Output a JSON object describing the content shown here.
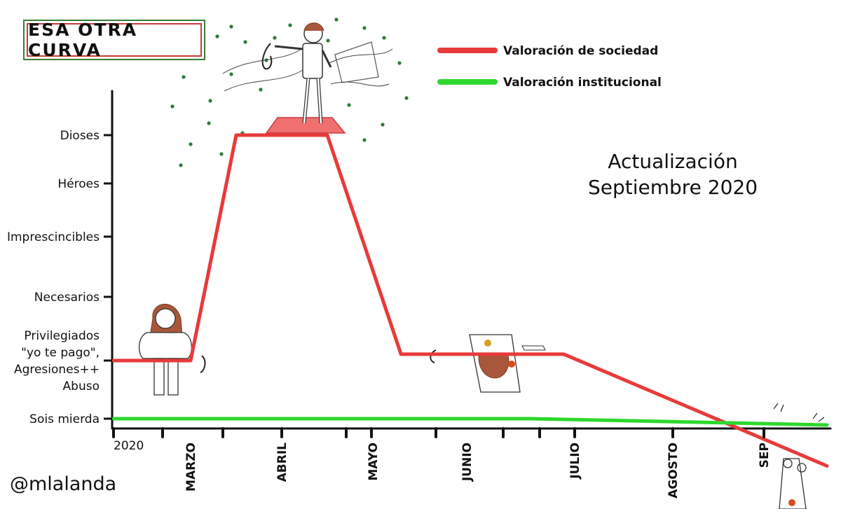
{
  "title": "ESA OTRA CURVA",
  "annotation": {
    "line1": "Actualización",
    "line2": "Septiembre 2020"
  },
  "signature": "@mlalanda",
  "colors": {
    "society": "#e83a3a",
    "institutional": "#2ed82e",
    "axis": "#111111",
    "frame_green": "#3a7a3a",
    "frame_red": "#c83a3a"
  },
  "icons": [
    "doctor-sitting-illustration",
    "doctor-triumphant-illustration",
    "doctor-collapsed-illustration",
    "doctor-hanging-illustration",
    "virus-particles"
  ],
  "chart_data": {
    "type": "line",
    "x_tick_labels": [
      "2020",
      "MARZO",
      "ABRIL",
      "MAYO",
      "JUNIO",
      "JULIO",
      "AGOSTO",
      "SEP"
    ],
    "y_tick_labels": [
      "Dioses",
      "Héroes",
      "Imprescincibles",
      "Necesarios",
      "Privilegiados\n\"yo te pago\",\nAgresiones++\nAbuso",
      "Sois mierda"
    ],
    "y_levels": [
      6,
      5,
      4,
      3,
      2,
      1
    ],
    "legend_position": "top-center",
    "series": [
      {
        "name": "Valoración de sociedad",
        "color": "#e83a3a",
        "x": [
          0,
          1.0,
          1.5,
          2.5,
          3.3,
          4.0,
          4.9,
          7.5
        ],
        "y": [
          2,
          2,
          6,
          6,
          2.1,
          2.1,
          2.1,
          0.25
        ]
      },
      {
        "name": "Valoración institucional",
        "color": "#2ed82e",
        "x": [
          0,
          4.6,
          7.5
        ],
        "y": [
          1,
          1,
          0.9
        ]
      }
    ]
  }
}
